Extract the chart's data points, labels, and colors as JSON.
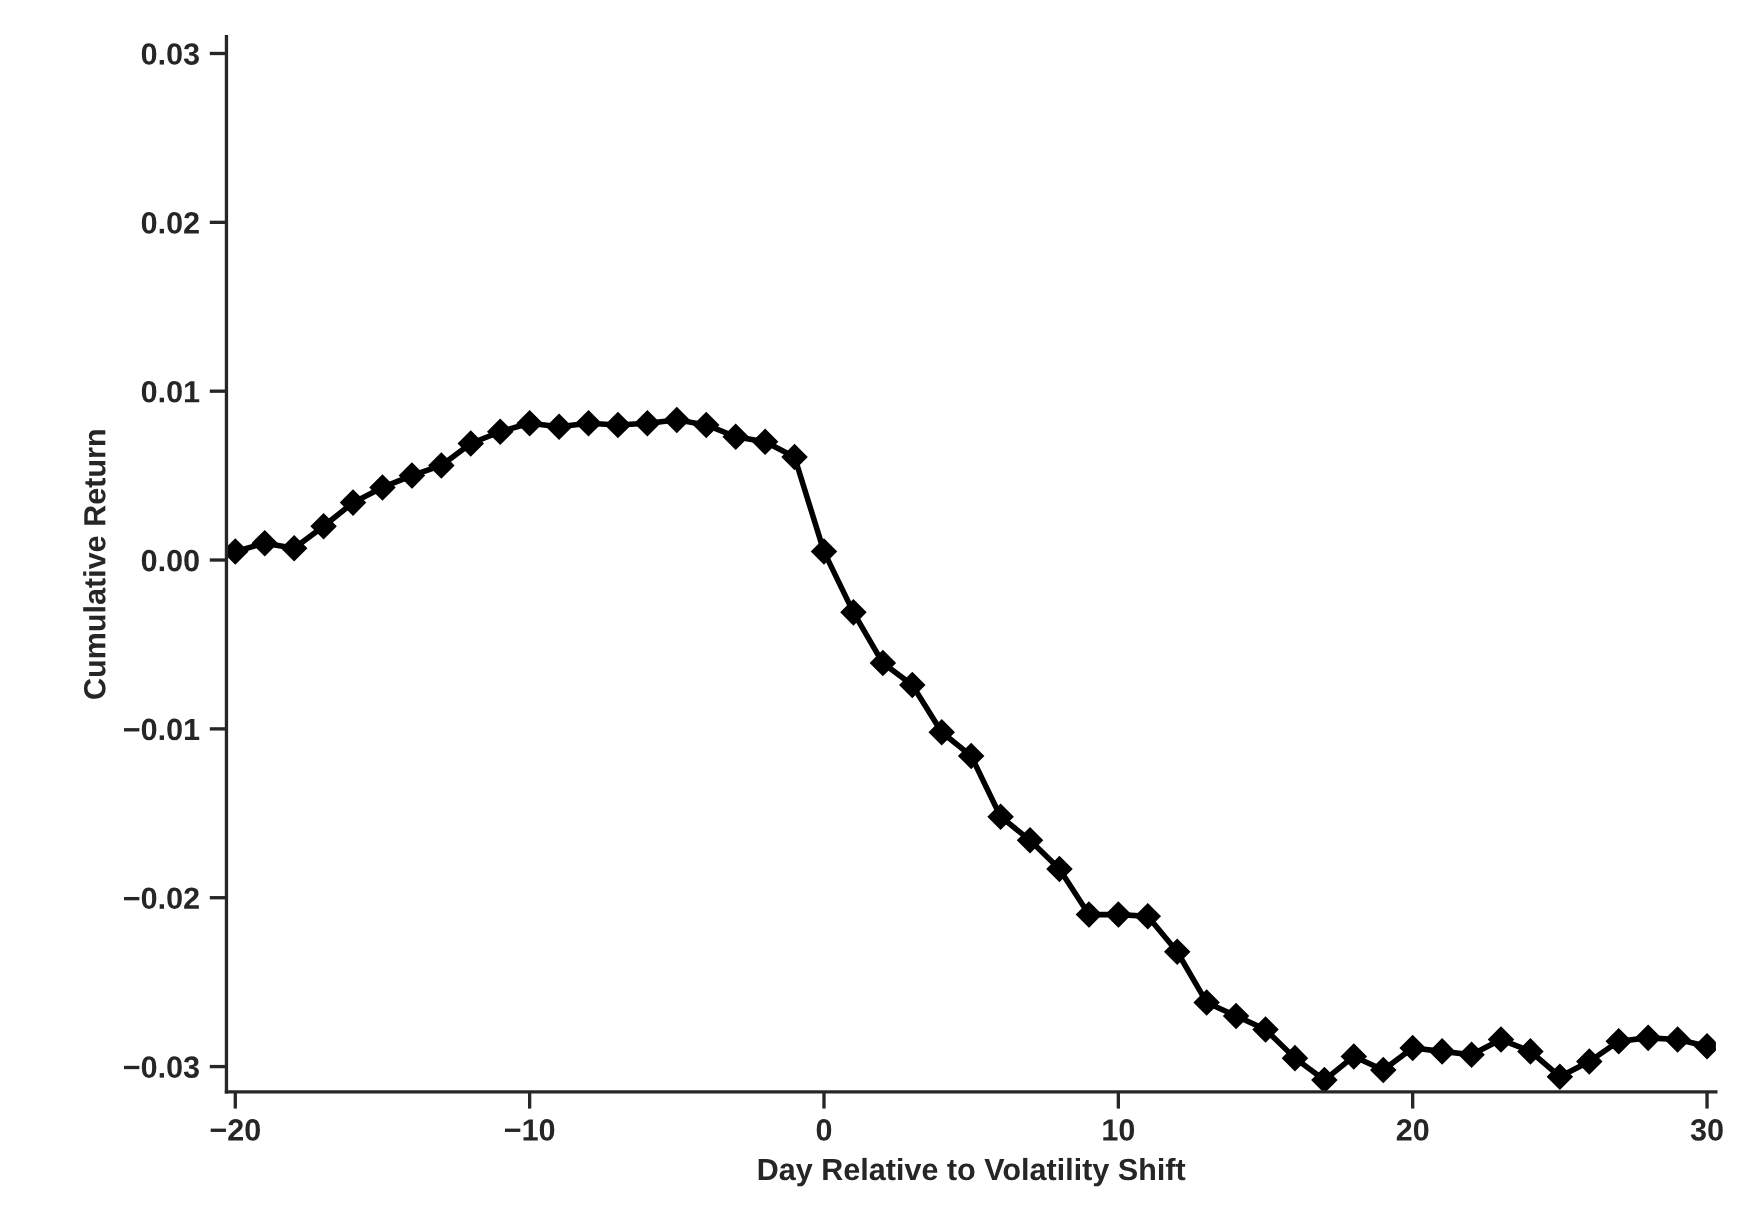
{
  "chart_data": {
    "type": "line",
    "xlabel": "Day Relative to Volatility Shift",
    "ylabel": "Cumulative Return",
    "x": [
      -20,
      -19,
      -18,
      -17,
      -16,
      -15,
      -14,
      -13,
      -12,
      -11,
      -10,
      -9,
      -8,
      -7,
      -6,
      -5,
      -4,
      -3,
      -2,
      -1,
      0,
      1,
      2,
      3,
      4,
      5,
      6,
      7,
      8,
      9,
      10,
      11,
      12,
      13,
      14,
      15,
      16,
      17,
      18,
      19,
      20,
      21,
      22,
      23,
      24,
      25,
      26,
      27,
      28,
      29,
      30
    ],
    "series": [
      {
        "color": "#000000",
        "values": [
          0.0005,
          0.001,
          0.0007,
          0.002,
          0.0034,
          0.0043,
          0.005,
          0.0056,
          0.0069,
          0.0076,
          0.0081,
          0.0079,
          0.0081,
          0.008,
          0.0081,
          0.0083,
          0.008,
          0.0073,
          0.007,
          0.0061,
          0.0005,
          -0.0031,
          -0.0061,
          -0.0074,
          -0.0102,
          -0.0116,
          -0.0152,
          -0.0166,
          -0.0183,
          -0.021,
          -0.021,
          -0.0211,
          -0.0232,
          -0.0262,
          -0.027,
          -0.0278,
          -0.0295,
          -0.0308,
          -0.0294,
          -0.0302,
          -0.0289,
          -0.0291,
          -0.0293,
          -0.0284,
          -0.0291,
          -0.0306,
          -0.0297,
          -0.0285,
          -0.0283,
          -0.0284,
          -0.0288
        ]
      }
    ],
    "marker": "diamond",
    "line_style": "solid",
    "grid": false,
    "legend": false,
    "xlim": [
      -20.3,
      30.3
    ],
    "xticks": [
      {
        "value": -20,
        "label": "−20"
      },
      {
        "value": -10,
        "label": "−10"
      },
      0,
      10,
      20,
      30
    ],
    "ylim": [
      -0.0315,
      0.031
    ],
    "yticks": [
      {
        "value": -0.03,
        "label": "−0.03"
      },
      {
        "value": -0.02,
        "label": "−0.02"
      },
      {
        "value": -0.01,
        "label": "−0.01"
      },
      {
        "value": 0,
        "label": "0.00"
      },
      {
        "value": 0.01,
        "label": "0.01"
      },
      {
        "value": 0.02,
        "label": "0.02"
      },
      {
        "value": 0.03,
        "label": "0.03"
      }
    ]
  }
}
